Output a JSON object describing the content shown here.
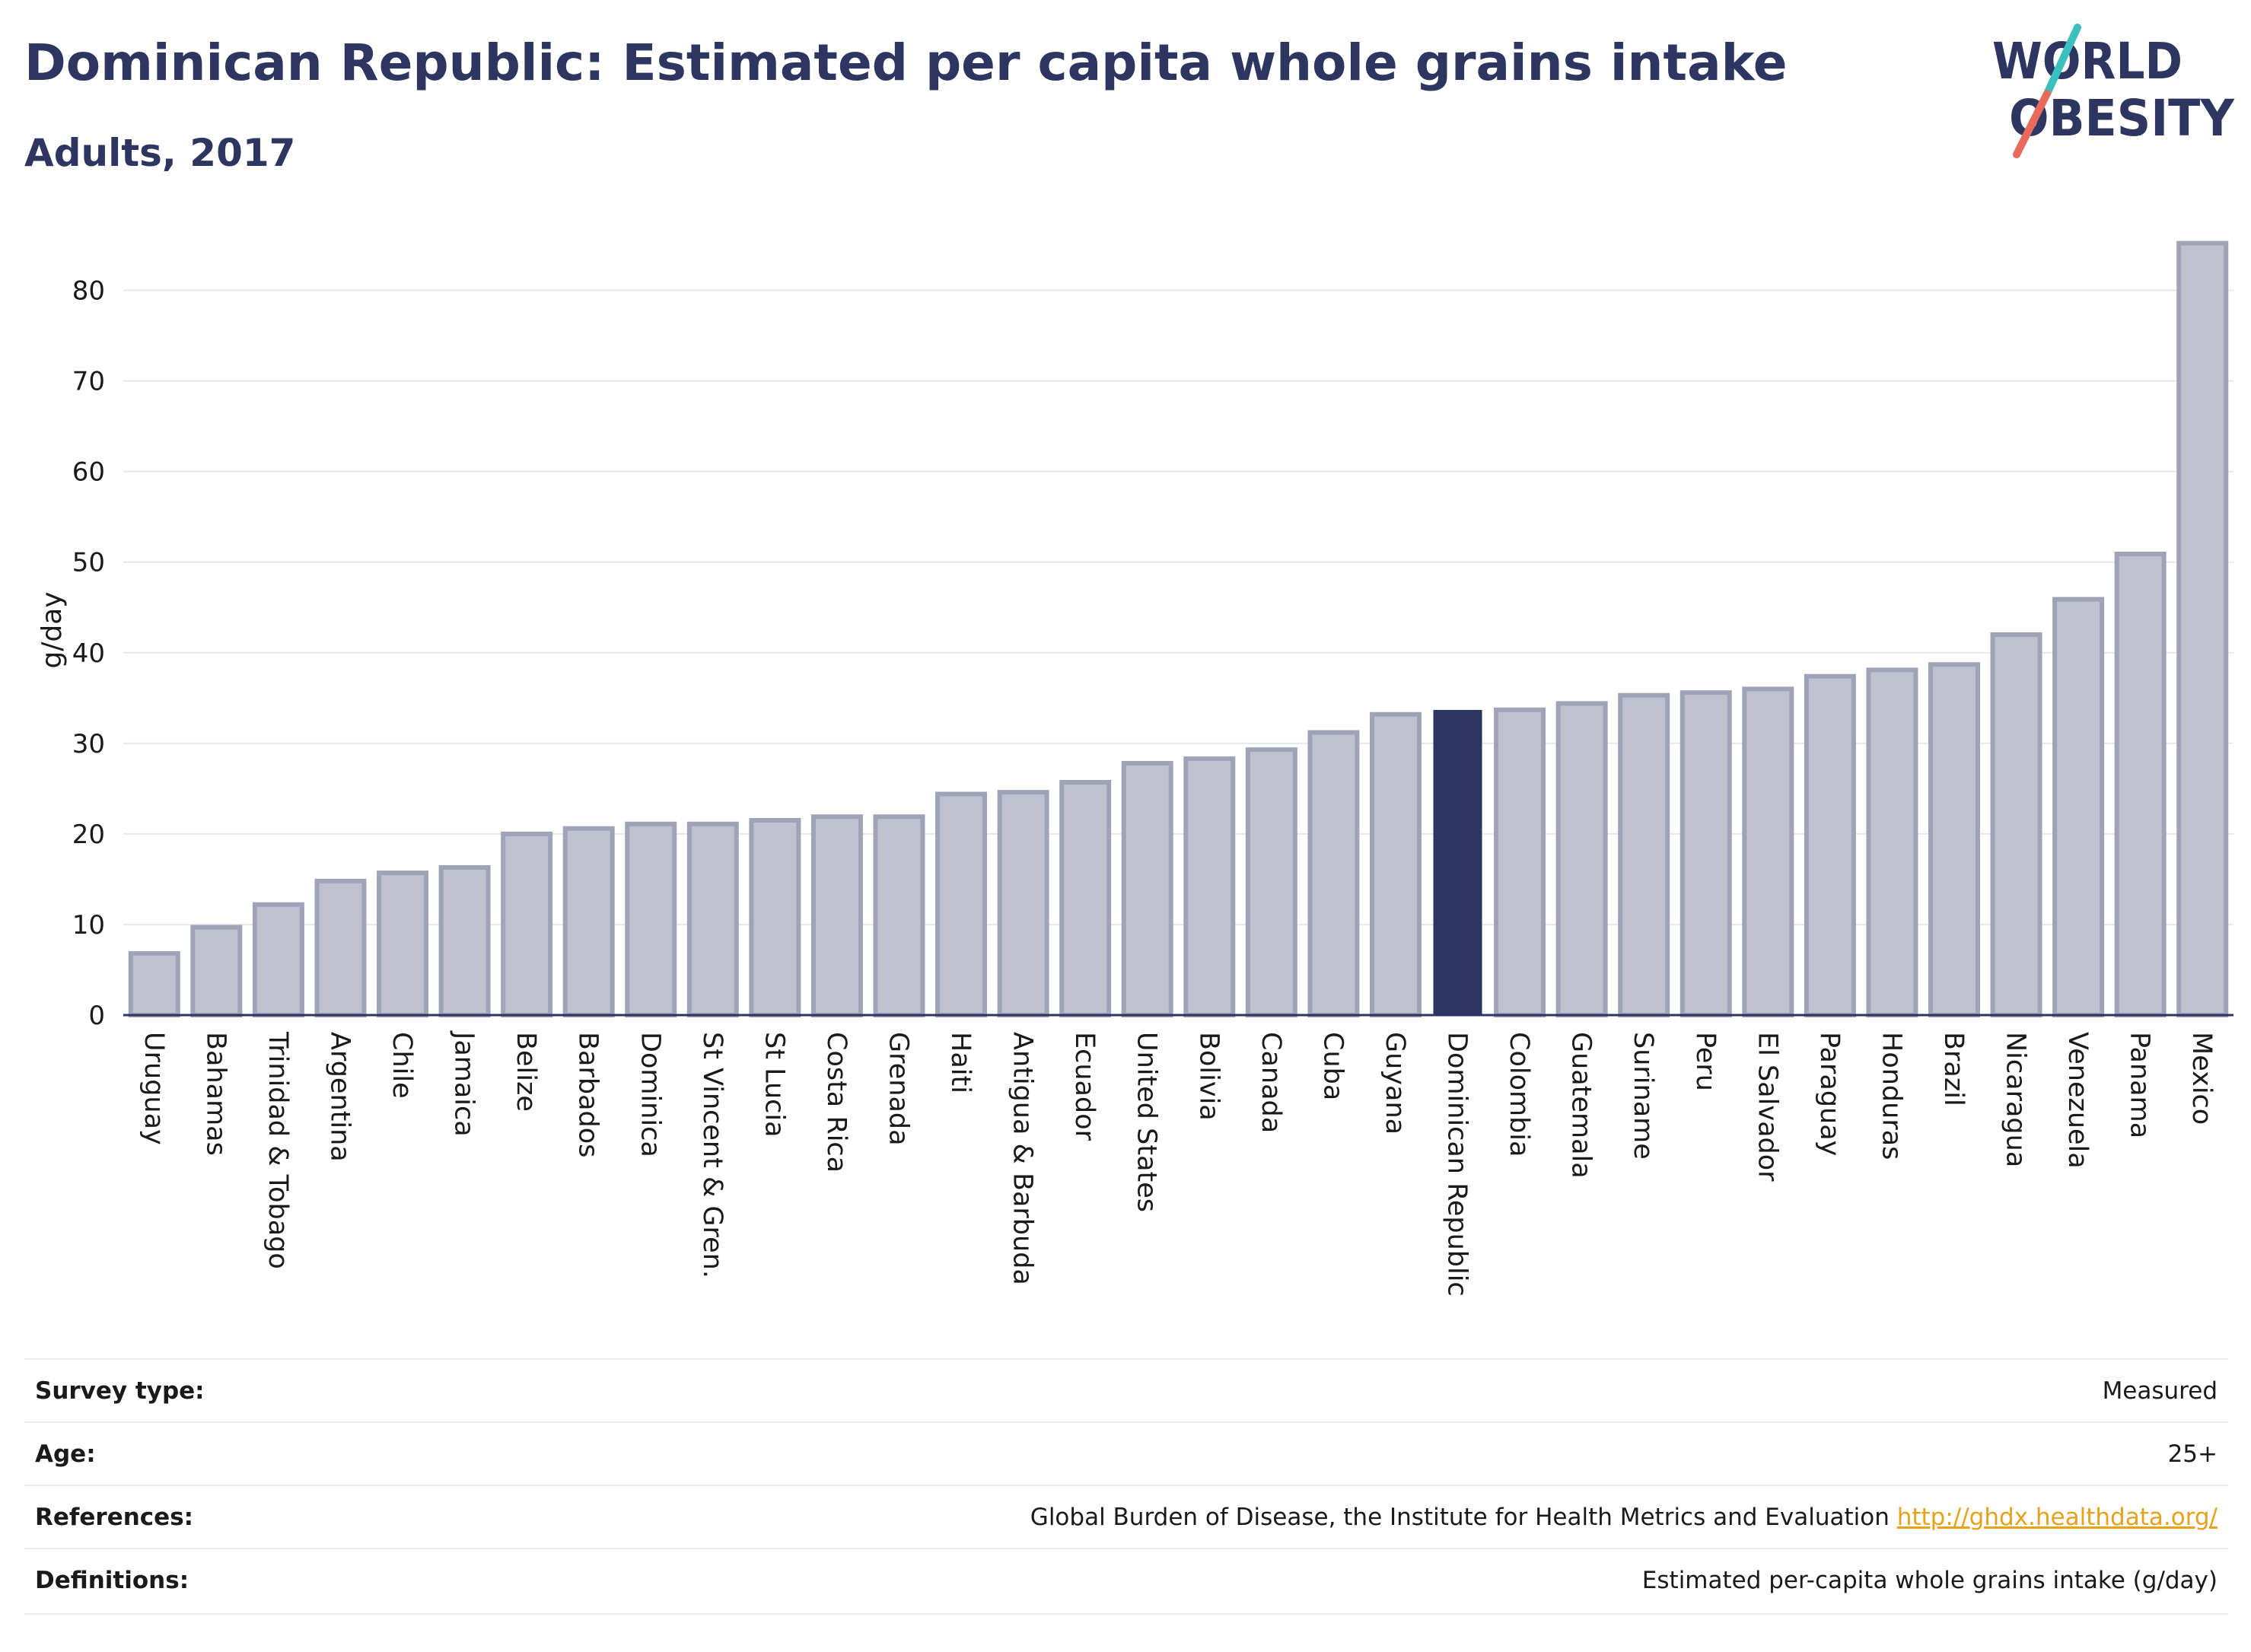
{
  "header": {
    "title": "Dominican Republic: Estimated per capita whole grains intake",
    "subtitle": "Adults, 2017"
  },
  "logo": {
    "line1": "WORLD",
    "line2": "OBESITY"
  },
  "colors": {
    "bar": "#bfc2ce",
    "bar_border": "#9ea3b8",
    "highlight": "#2d3561",
    "accent_teal": "#3cbfbf",
    "accent_coral": "#e86a5a",
    "link": "#e6a21b"
  },
  "chart_data": {
    "type": "bar",
    "ylabel": "g/day",
    "ylim": [
      0,
      85
    ],
    "yticks": [
      0,
      10,
      20,
      30,
      40,
      50,
      60,
      70,
      80
    ],
    "grid": true,
    "highlight": "Dominican Republic",
    "categories": [
      "Uruguay",
      "Bahamas",
      "Trinidad & Tobago",
      "Argentina",
      "Chile",
      "Jamaica",
      "Belize",
      "Barbados",
      "Dominica",
      "St Vincent & Gren.",
      "St Lucia",
      "Costa Rica",
      "Grenada",
      "Haiti",
      "Antigua & Barbuda",
      "Ecuador",
      "United States",
      "Bolivia",
      "Canada",
      "Cuba",
      "Guyana",
      "Dominican Republic",
      "Colombia",
      "Guatemala",
      "Suriname",
      "Peru",
      "El Salvador",
      "Paraguay",
      "Honduras",
      "Brazil",
      "Nicaragua",
      "Venezuela",
      "Panama",
      "Mexico"
    ],
    "values": [
      6.8,
      9.7,
      12.2,
      14.8,
      15.7,
      16.3,
      20.0,
      20.6,
      21.1,
      21.1,
      21.5,
      21.9,
      21.9,
      24.4,
      24.6,
      25.7,
      27.8,
      28.3,
      29.3,
      31.2,
      33.2,
      33.6,
      33.7,
      34.4,
      35.3,
      35.6,
      36.0,
      37.4,
      38.1,
      38.7,
      42.0,
      45.9,
      50.9,
      85.2
    ]
  },
  "info": [
    {
      "label": "Survey type:",
      "value": "Measured"
    },
    {
      "label": "Age:",
      "value": "25+"
    },
    {
      "label": "References:",
      "value": "Global Burden of Disease, the Institute for Health Metrics and Evaluation",
      "link": "http://ghdx.healthdata.org/"
    },
    {
      "label": "Definitions:",
      "value": "Estimated per-capita whole grains intake (g/day)"
    }
  ]
}
